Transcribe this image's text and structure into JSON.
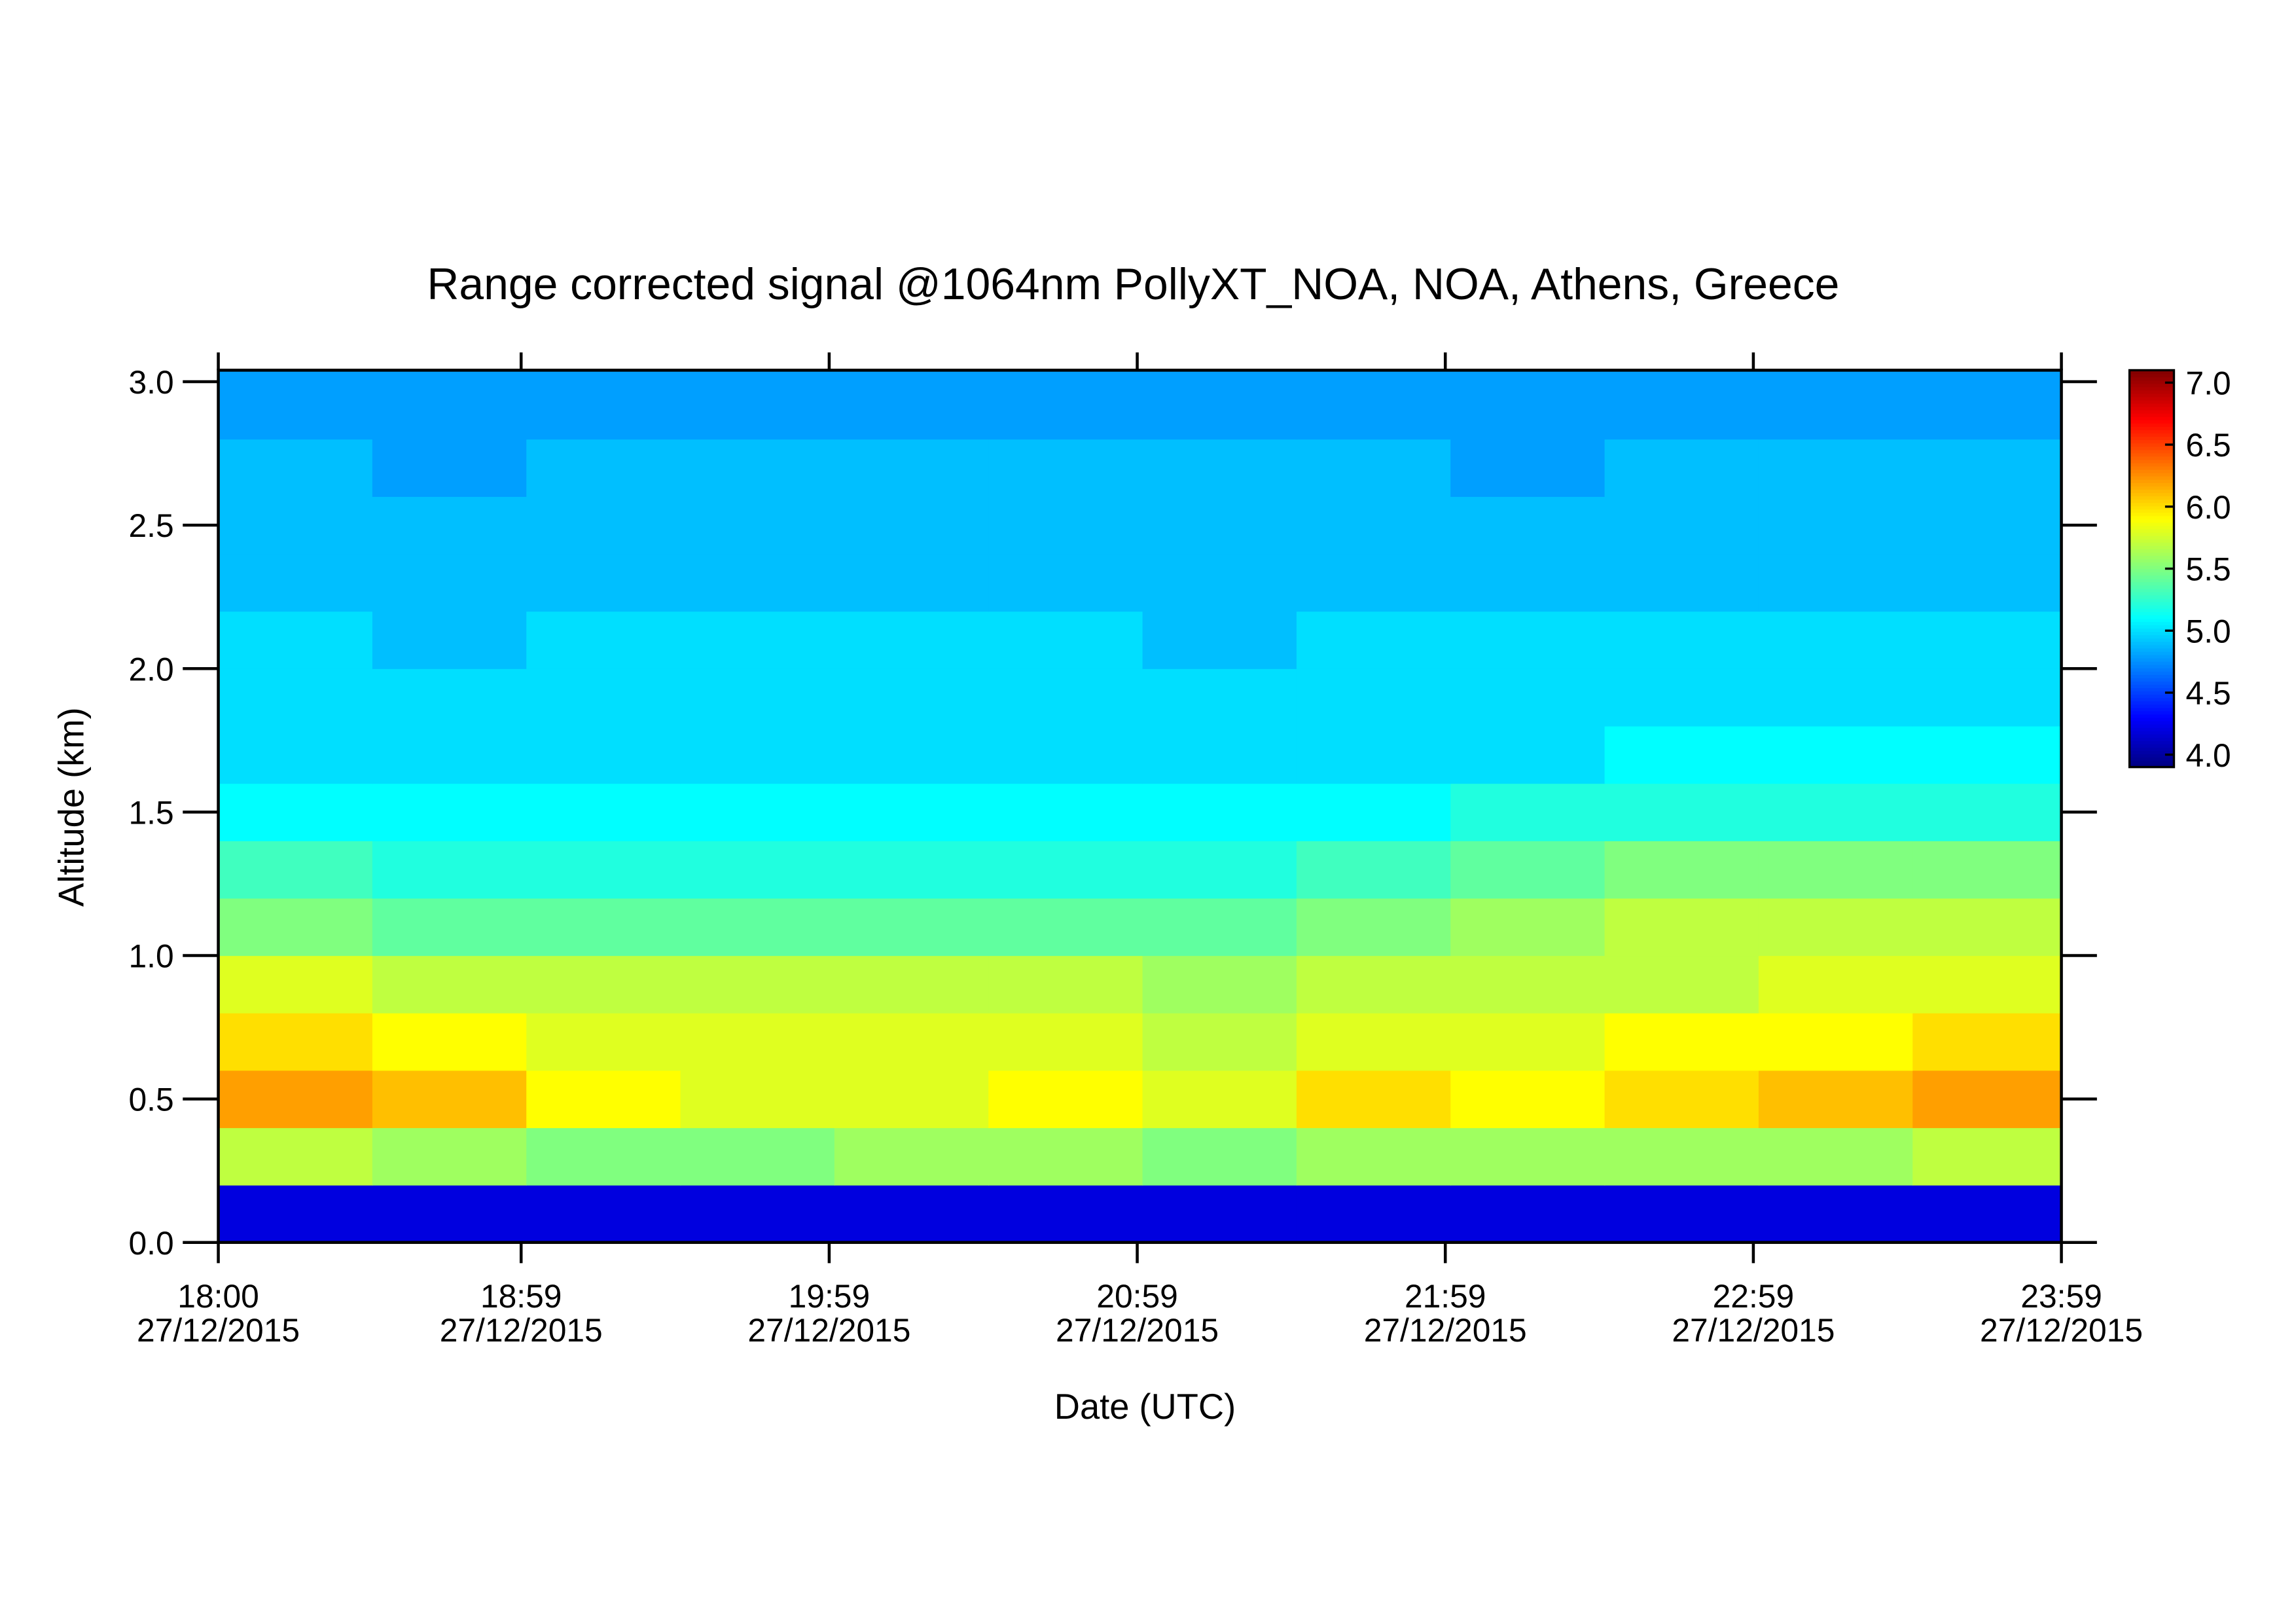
{
  "chart_data": {
    "type": "heatmap",
    "title": "Range corrected signal @1064nm  PollyXT_NOA, NOA, Athens, Greece",
    "x_label": "Date (UTC)",
    "y_label": "Altitude (km)",
    "x": [
      18.0,
      18.5,
      19.0,
      19.5,
      20.0,
      20.5,
      21.0,
      21.5,
      22.0,
      22.5,
      23.0,
      23.5
    ],
    "y": [
      0.0,
      0.2,
      0.4,
      0.6,
      0.8,
      1.0,
      1.2,
      1.4,
      1.6,
      1.8,
      2.0,
      2.2,
      2.4,
      2.6,
      2.8
    ],
    "z": [
      [
        4.2,
        4.2,
        4.2,
        4.2,
        4.2,
        4.2,
        4.2,
        4.2,
        4.2,
        4.2,
        4.2,
        4.2
      ],
      [
        5.7,
        5.6,
        5.5,
        5.5,
        5.6,
        5.6,
        5.5,
        5.6,
        5.6,
        5.6,
        5.6,
        5.7
      ],
      [
        6.2,
        6.1,
        5.9,
        5.8,
        5.8,
        5.9,
        5.8,
        6.0,
        5.9,
        6.0,
        6.1,
        6.2
      ],
      [
        6.0,
        5.9,
        5.8,
        5.8,
        5.8,
        5.8,
        5.7,
        5.8,
        5.8,
        5.9,
        5.9,
        6.0
      ],
      [
        5.8,
        5.7,
        5.7,
        5.7,
        5.7,
        5.7,
        5.6,
        5.7,
        5.7,
        5.7,
        5.8,
        5.8
      ],
      [
        5.5,
        5.4,
        5.4,
        5.4,
        5.4,
        5.4,
        5.4,
        5.5,
        5.6,
        5.7,
        5.7,
        5.7
      ],
      [
        5.3,
        5.2,
        5.2,
        5.2,
        5.2,
        5.2,
        5.2,
        5.3,
        5.4,
        5.5,
        5.5,
        5.5
      ],
      [
        5.1,
        5.1,
        5.1,
        5.1,
        5.1,
        5.1,
        5.1,
        5.1,
        5.2,
        5.2,
        5.2,
        5.2
      ],
      [
        5.0,
        5.0,
        5.0,
        5.0,
        5.0,
        5.0,
        5.0,
        5.0,
        5.0,
        5.1,
        5.1,
        5.1
      ],
      [
        5.0,
        5.0,
        5.0,
        5.0,
        5.0,
        5.0,
        5.0,
        5.0,
        5.0,
        5.0,
        5.0,
        5.0
      ],
      [
        5.0,
        4.9,
        5.0,
        5.0,
        5.0,
        5.0,
        4.9,
        5.0,
        5.0,
        5.0,
        5.0,
        5.0
      ],
      [
        4.9,
        4.9,
        4.9,
        4.9,
        4.9,
        4.9,
        4.9,
        4.9,
        4.9,
        4.9,
        4.9,
        4.9
      ],
      [
        4.9,
        4.9,
        4.9,
        4.9,
        4.9,
        4.9,
        4.9,
        4.9,
        4.9,
        4.9,
        4.9,
        4.9
      ],
      [
        4.9,
        4.8,
        4.9,
        4.9,
        4.9,
        4.9,
        4.9,
        4.9,
        4.8,
        4.9,
        4.9,
        4.9
      ],
      [
        4.8,
        4.8,
        4.8,
        4.8,
        4.8,
        4.8,
        4.8,
        4.8,
        4.8,
        4.8,
        4.8,
        4.8
      ]
    ],
    "xlim": [
      18.0,
      23.983
    ],
    "xticks": [
      {
        "value": 18.0,
        "label": "18:00\n27/12/2015"
      },
      {
        "value": 18.983,
        "label": "18:59\n27/12/2015"
      },
      {
        "value": 19.983,
        "label": "19:59\n27/12/2015"
      },
      {
        "value": 20.983,
        "label": "20:59\n27/12/2015"
      },
      {
        "value": 21.983,
        "label": "21:59\n27/12/2015"
      },
      {
        "value": 22.983,
        "label": "22:59\n27/12/2015"
      },
      {
        "value": 23.983,
        "label": "23:59\n27/12/2015"
      }
    ],
    "ylim": [
      0,
      3.04
    ],
    "yticks": [
      {
        "value": 0,
        "label": "0.0"
      },
      0.5,
      {
        "value": 1,
        "label": "1.0"
      },
      1.5,
      {
        "value": 2,
        "label": "2.0"
      },
      2.5,
      {
        "value": 3,
        "label": "3.0"
      }
    ],
    "zlim": [
      3.9,
      7.1
    ],
    "zticks": [
      {
        "value": 4,
        "label": "4.0"
      },
      4.5,
      {
        "value": 5,
        "label": "5.0"
      },
      5.5,
      {
        "value": 6,
        "label": "6.0"
      },
      6.5,
      {
        "value": 7,
        "label": "7.0"
      }
    ],
    "colormap": "jet"
  }
}
